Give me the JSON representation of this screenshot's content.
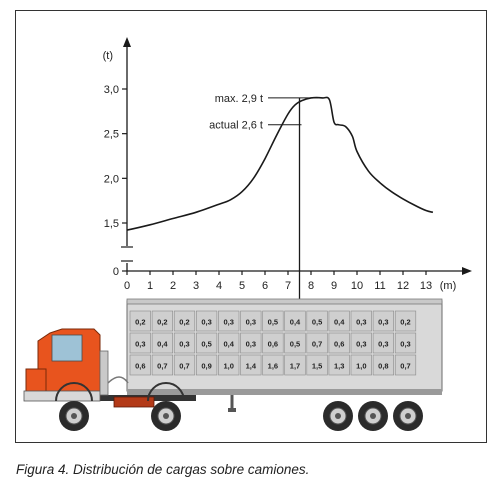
{
  "caption": "Figura 4. Distribución de cargas sobre camiones.",
  "chart_data": {
    "type": "line",
    "title": "",
    "xlabel": "(m)",
    "ylabel": "(t)",
    "xlim": [
      0,
      14
    ],
    "ylim": [
      0,
      3.2
    ],
    "y_axis_break": true,
    "x_ticks": [
      0,
      1,
      2,
      3,
      4,
      5,
      6,
      7,
      8,
      9,
      10,
      11,
      12,
      13
    ],
    "x_tick_labels": [
      "0",
      "1",
      "2",
      "3",
      "4",
      "5",
      "6",
      "7",
      "8",
      "9",
      "10",
      "11",
      "12",
      "13"
    ],
    "y_ticks": [
      0,
      1.5,
      2.0,
      2.5,
      3.0
    ],
    "y_tick_labels": [
      "0",
      "1,5",
      "2,0",
      "2,5",
      "3,0"
    ],
    "series": [
      {
        "x": [
          0,
          1,
          2,
          3,
          4,
          4.5,
          5,
          5.5,
          6,
          6.5,
          7,
          7.3,
          7.6,
          8,
          8.5,
          8.8,
          9,
          9.2,
          9.5,
          9.8,
          10,
          10.5,
          11,
          11.5,
          12,
          12.5,
          13,
          13.3
        ],
        "y": [
          1.42,
          1.48,
          1.55,
          1.62,
          1.71,
          1.76,
          1.85,
          2.0,
          2.22,
          2.48,
          2.72,
          2.82,
          2.87,
          2.9,
          2.9,
          2.88,
          2.63,
          2.6,
          2.58,
          2.47,
          2.3,
          2.08,
          1.95,
          1.85,
          1.77,
          1.7,
          1.64,
          1.62
        ]
      }
    ],
    "annotations": [
      {
        "text": "max. 2,9 t",
        "y": 2.9
      },
      {
        "text": "actual 2,6 t",
        "y": 2.6
      }
    ],
    "arrow_x": 7.5,
    "load_grid": {
      "rows": [
        [
          "0,2",
          "0,2",
          "0,2",
          "0,3",
          "0,3",
          "0,3",
          "0,5",
          "0,4",
          "0,5",
          "0,4",
          "0,3",
          "0,3",
          "0,2"
        ],
        [
          "0,3",
          "0,4",
          "0,3",
          "0,5",
          "0,4",
          "0,3",
          "0,6",
          "0,5",
          "0,7",
          "0,6",
          "0,3",
          "0,3",
          "0,3"
        ],
        [
          "0,6",
          "0,7",
          "0,7",
          "0,9",
          "1,0",
          "1,4",
          "1,6",
          "1,7",
          "1,5",
          "1,3",
          "1,0",
          "0,8",
          "0,7"
        ]
      ]
    },
    "colors": {
      "line": "#1a1a1a",
      "truck_cab": "#e8541e",
      "trailer": "#d9d9d9",
      "grid_cell": "#cfcfcf",
      "wheel": "#2b2b2b"
    }
  }
}
